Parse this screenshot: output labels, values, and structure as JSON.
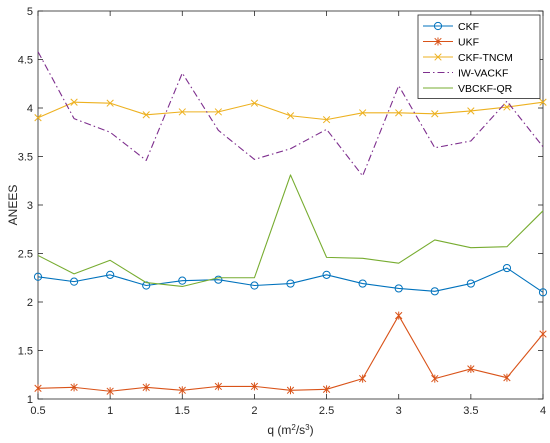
{
  "chart_data": {
    "type": "line",
    "title": "",
    "xlabel": "q (m",
    "xlabel_sup1": "2",
    "xlabel_mid": "/s",
    "xlabel_sup2": "3",
    "xlabel_end": ")",
    "ylabel": "ANEES",
    "xlim": [
      0.5,
      4
    ],
    "ylim": [
      1,
      5
    ],
    "xticks": [
      0.5,
      1,
      1.5,
      2,
      2.5,
      3,
      3.5,
      4
    ],
    "xtick_labels": [
      "0.5",
      "1",
      "1.5",
      "2",
      "2.5",
      "3",
      "3.5",
      "4"
    ],
    "yticks": [
      1,
      1.5,
      2,
      2.5,
      3,
      3.5,
      4,
      4.5,
      5
    ],
    "ytick_labels": [
      "1",
      "1.5",
      "2",
      "2.5",
      "3",
      "3.5",
      "4",
      "4.5",
      "5"
    ],
    "grid": false,
    "legend_position": "top-right",
    "x": [
      0.5,
      0.75,
      1,
      1.25,
      1.5,
      1.75,
      2,
      2.25,
      2.5,
      2.75,
      3,
      3.25,
      3.5,
      3.75,
      4
    ],
    "series": [
      {
        "name": "CKF",
        "color": "#0072BD",
        "marker": "circle",
        "dash": "solid",
        "values": [
          2.26,
          2.21,
          2.28,
          2.17,
          2.22,
          2.23,
          2.17,
          2.19,
          2.28,
          2.19,
          2.14,
          2.11,
          2.19,
          2.35,
          2.1
        ]
      },
      {
        "name": "UKF",
        "color": "#D95319",
        "marker": "asterisk",
        "dash": "solid",
        "values": [
          1.11,
          1.12,
          1.08,
          1.12,
          1.09,
          1.13,
          1.13,
          1.09,
          1.1,
          1.21,
          1.86,
          1.21,
          1.31,
          1.22,
          1.67
        ]
      },
      {
        "name": "CKF-TNCM",
        "color": "#EDB120",
        "marker": "x",
        "dash": "solid",
        "values": [
          3.9,
          4.06,
          4.05,
          3.93,
          3.96,
          3.96,
          4.05,
          3.92,
          3.88,
          3.95,
          3.95,
          3.94,
          3.97,
          4.01,
          4.06
        ]
      },
      {
        "name": "IW-VACKF",
        "color": "#7E2F8E",
        "marker": "none",
        "dash": "dashdot",
        "values": [
          4.58,
          3.89,
          3.75,
          3.46,
          4.36,
          3.77,
          3.47,
          3.58,
          3.78,
          3.3,
          4.23,
          3.59,
          3.66,
          4.07,
          3.6
        ]
      },
      {
        "name": "VBCKF-QR",
        "color": "#77AC30",
        "marker": "none",
        "dash": "solid",
        "values": [
          2.48,
          2.29,
          2.43,
          2.2,
          2.16,
          2.25,
          2.25,
          3.31,
          2.46,
          2.45,
          2.4,
          2.64,
          2.56,
          2.57,
          2.94
        ]
      }
    ]
  }
}
